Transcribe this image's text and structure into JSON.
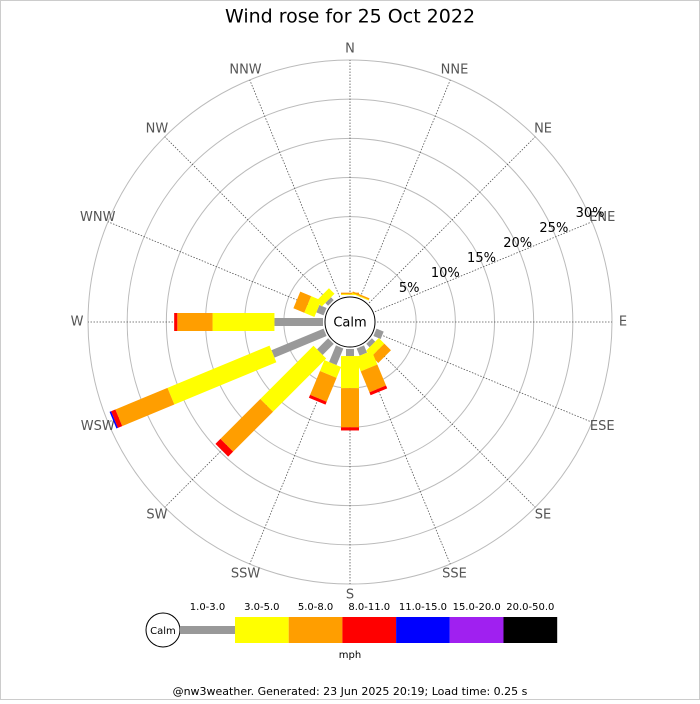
{
  "chart_data": {
    "type": "windrose",
    "title": "Wind rose for 25 Oct 2022",
    "directions": [
      "N",
      "NNE",
      "NE",
      "ENE",
      "E",
      "ESE",
      "SE",
      "SSE",
      "S",
      "SSW",
      "SW",
      "WSW",
      "W",
      "WNW",
      "NW",
      "NNW"
    ],
    "calm_label": "Calm",
    "unit": "mph",
    "rlim": [
      0,
      30
    ],
    "rticks": [
      {
        "value": 5,
        "label": "5%"
      },
      {
        "value": 10,
        "label": "10%"
      },
      {
        "value": 15,
        "label": "15%"
      },
      {
        "value": 20,
        "label": "20%"
      },
      {
        "value": 25,
        "label": "25%"
      },
      {
        "value": 30,
        "label": "30%"
      }
    ],
    "series": [
      {
        "name": "1.0-3.0",
        "color": "#999999",
        "values": [
          0,
          0,
          0,
          0,
          0,
          1.0,
          0.6,
          1.0,
          0.9,
          2.3,
          2.0,
          7.2,
          6.2,
          1.0,
          0.5,
          0
        ]
      },
      {
        "name": "3.0-5.0",
        "color": "#ffff00",
        "values": [
          0.1,
          0.1,
          0,
          0,
          0,
          0,
          1.0,
          1.9,
          4.1,
          1.5,
          9.6,
          14.1,
          7.9,
          1.4,
          1.0,
          0
        ]
      },
      {
        "name": "5.0-8.0",
        "color": "#ff9e00",
        "values": [
          0.2,
          0.2,
          0,
          0,
          0,
          0,
          1.2,
          2.9,
          5.0,
          3.3,
          7.2,
          7.2,
          4.5,
          1.5,
          0,
          0
        ]
      },
      {
        "name": "8.0-11.0",
        "color": "#ff0000",
        "values": [
          0,
          0,
          0,
          0,
          0,
          0,
          0,
          0.4,
          0.4,
          0.4,
          0.9,
          0.6,
          0.4,
          0,
          0,
          0
        ]
      },
      {
        "name": "11.0-15.0",
        "color": "#0000ff",
        "values": [
          0,
          0,
          0,
          0,
          0,
          0,
          0,
          0,
          0,
          0,
          0,
          0.2,
          0,
          0,
          0,
          0
        ]
      },
      {
        "name": "15.0-20.0",
        "color": "#a020f0",
        "values": [
          0,
          0,
          0,
          0,
          0,
          0,
          0,
          0,
          0,
          0,
          0,
          0,
          0,
          0,
          0,
          0
        ]
      },
      {
        "name": "20.0-50.0",
        "color": "#000000",
        "values": [
          0,
          0,
          0,
          0,
          0,
          0,
          0,
          0,
          0,
          0,
          0,
          0,
          0,
          0,
          0,
          0
        ]
      }
    ]
  },
  "footer": "@nw3weather. Generated: 23 Jun 2025 20:19; Load time: 0.25 s"
}
